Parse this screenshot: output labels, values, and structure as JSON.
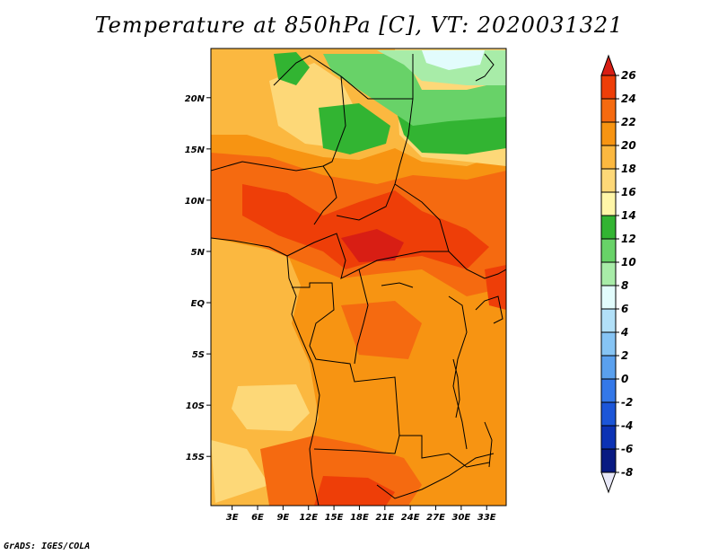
{
  "title": "Temperature at 850hPa [C], VT: 2020031321",
  "credit": "GrADS: IGES/COLA",
  "map": {
    "lat_labels": [
      "20N",
      "15N",
      "10N",
      "5N",
      "EQ",
      "5S",
      "10S",
      "15S"
    ],
    "lat_values": [
      20,
      15,
      10,
      5,
      0,
      -5,
      -10,
      -15
    ],
    "lon_labels": [
      "3E",
      "6E",
      "9E",
      "12E",
      "15E",
      "18E",
      "21E",
      "24E",
      "27E",
      "30E",
      "33E"
    ],
    "lon_values": [
      3,
      6,
      9,
      12,
      15,
      18,
      21,
      24,
      27,
      30,
      33
    ],
    "lat_range": [
      -19.8,
      24.8
    ],
    "lon_range": [
      0.5,
      35.3
    ]
  },
  "colorbar": {
    "levels": [
      "26",
      "24",
      "22",
      "20",
      "18",
      "16",
      "14",
      "12",
      "10",
      "8",
      "6",
      "4",
      "2",
      "0",
      "-2",
      "-4",
      "-6",
      "-8"
    ],
    "colors": [
      "#d81e14",
      "#ee3e08",
      "#f56a10",
      "#f79412",
      "#fbb840",
      "#fdd878",
      "#fff6a8",
      "#32b432",
      "#68d268",
      "#a8eca8",
      "#e2fcfc",
      "#b2e0f8",
      "#86c4f4",
      "#5aa0ee",
      "#3478e8",
      "#1c56d8",
      "#0c32b4",
      "#081a82",
      "#e8e8f8"
    ]
  }
}
